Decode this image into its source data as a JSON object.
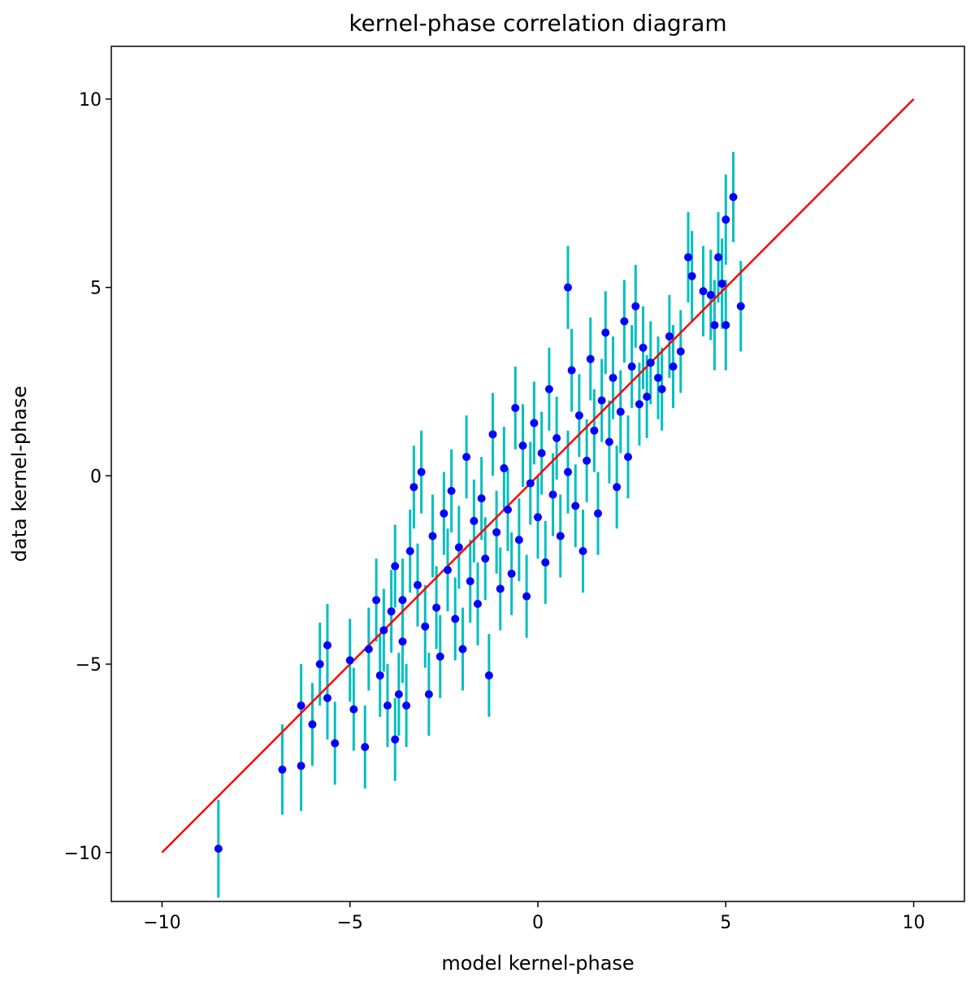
{
  "chart_data": {
    "type": "scatter",
    "title": "kernel-phase correlation diagram",
    "xlabel": "model kernel-phase",
    "ylabel": "data kernel-phase",
    "xlim": [
      -11.35,
      11.35
    ],
    "ylim": [
      -11.3,
      11.4
    ],
    "x_ticks": [
      -10,
      -5,
      0,
      5,
      10
    ],
    "y_ticks": [
      -10,
      -5,
      0,
      5,
      10
    ],
    "x_tick_labels": [
      "−10",
      "−5",
      "0",
      "5",
      "10"
    ],
    "y_tick_labels": [
      "−10",
      "−5",
      "0",
      "5",
      "10"
    ],
    "grid": false,
    "legend": "none",
    "point_color": "#0000ff",
    "errorbar_color": "#00bfbf",
    "line_color": "#ff0000",
    "reference_line": {
      "x": [
        -10,
        10
      ],
      "y": [
        -10,
        10
      ]
    },
    "series": [
      {
        "points": [
          {
            "x": -8.5,
            "y": -9.9,
            "err": 1.3
          },
          {
            "x": -6.8,
            "y": -7.8,
            "err": 1.2
          },
          {
            "x": -6.3,
            "y": -7.7,
            "err": 1.2
          },
          {
            "x": -6.3,
            "y": -6.1,
            "err": 1.1
          },
          {
            "x": -6.0,
            "y": -6.6,
            "err": 1.1
          },
          {
            "x": -5.8,
            "y": -5.0,
            "err": 1.1
          },
          {
            "x": -5.6,
            "y": -4.5,
            "err": 1.1
          },
          {
            "x": -5.6,
            "y": -5.9,
            "err": 1.1
          },
          {
            "x": -5.4,
            "y": -7.1,
            "err": 1.1
          },
          {
            "x": -5.0,
            "y": -4.9,
            "err": 1.1
          },
          {
            "x": -4.9,
            "y": -6.2,
            "err": 1.1
          },
          {
            "x": -4.6,
            "y": -7.2,
            "err": 1.1
          },
          {
            "x": -4.5,
            "y": -4.6,
            "err": 1.1
          },
          {
            "x": -4.3,
            "y": -3.3,
            "err": 1.1
          },
          {
            "x": -4.2,
            "y": -5.3,
            "err": 1.1
          },
          {
            "x": -4.1,
            "y": -4.1,
            "err": 1.1
          },
          {
            "x": -4.0,
            "y": -6.1,
            "err": 1.1
          },
          {
            "x": -3.9,
            "y": -3.6,
            "err": 1.1
          },
          {
            "x": -3.8,
            "y": -2.4,
            "err": 1.1
          },
          {
            "x": -3.8,
            "y": -7.0,
            "err": 1.1
          },
          {
            "x": -3.7,
            "y": -5.8,
            "err": 1.1
          },
          {
            "x": -3.6,
            "y": -3.3,
            "err": 1.1
          },
          {
            "x": -3.6,
            "y": -4.4,
            "err": 1.1
          },
          {
            "x": -3.5,
            "y": -6.1,
            "err": 1.1
          },
          {
            "x": -3.4,
            "y": -2.0,
            "err": 1.1
          },
          {
            "x": -3.3,
            "y": -0.3,
            "err": 1.1
          },
          {
            "x": -3.2,
            "y": -2.9,
            "err": 1.1
          },
          {
            "x": -3.1,
            "y": 0.1,
            "err": 1.1
          },
          {
            "x": -3.0,
            "y": -4.0,
            "err": 1.1
          },
          {
            "x": -2.9,
            "y": -5.8,
            "err": 1.1
          },
          {
            "x": -2.8,
            "y": -1.6,
            "err": 1.1
          },
          {
            "x": -2.7,
            "y": -3.5,
            "err": 1.1
          },
          {
            "x": -2.6,
            "y": -4.8,
            "err": 1.1
          },
          {
            "x": -2.5,
            "y": -1.0,
            "err": 1.1
          },
          {
            "x": -2.4,
            "y": -2.5,
            "err": 1.1
          },
          {
            "x": -2.3,
            "y": -0.4,
            "err": 1.1
          },
          {
            "x": -2.2,
            "y": -3.8,
            "err": 1.1
          },
          {
            "x": -2.1,
            "y": -1.9,
            "err": 1.1
          },
          {
            "x": -2.0,
            "y": -4.6,
            "err": 1.1
          },
          {
            "x": -1.9,
            "y": 0.5,
            "err": 1.1
          },
          {
            "x": -1.8,
            "y": -2.8,
            "err": 1.1
          },
          {
            "x": -1.7,
            "y": -1.2,
            "err": 1.1
          },
          {
            "x": -1.6,
            "y": -3.4,
            "err": 1.1
          },
          {
            "x": -1.5,
            "y": -0.6,
            "err": 1.1
          },
          {
            "x": -1.4,
            "y": -2.2,
            "err": 1.1
          },
          {
            "x": -1.3,
            "y": -5.3,
            "err": 1.1
          },
          {
            "x": -1.2,
            "y": 1.1,
            "err": 1.1
          },
          {
            "x": -1.1,
            "y": -1.5,
            "err": 1.1
          },
          {
            "x": -1.0,
            "y": -3.0,
            "err": 1.1
          },
          {
            "x": -0.9,
            "y": 0.2,
            "err": 1.1
          },
          {
            "x": -0.8,
            "y": -0.9,
            "err": 1.1
          },
          {
            "x": -0.7,
            "y": -2.6,
            "err": 1.1
          },
          {
            "x": -0.6,
            "y": 1.8,
            "err": 1.1
          },
          {
            "x": -0.5,
            "y": -1.7,
            "err": 1.1
          },
          {
            "x": -0.4,
            "y": 0.8,
            "err": 1.1
          },
          {
            "x": -0.3,
            "y": -3.2,
            "err": 1.1
          },
          {
            "x": -0.2,
            "y": -0.2,
            "err": 1.1
          },
          {
            "x": -0.1,
            "y": 1.4,
            "err": 1.1
          },
          {
            "x": 0.0,
            "y": -1.1,
            "err": 1.1
          },
          {
            "x": 0.1,
            "y": 0.6,
            "err": 1.1
          },
          {
            "x": 0.2,
            "y": -2.3,
            "err": 1.1
          },
          {
            "x": 0.3,
            "y": 2.3,
            "err": 1.1
          },
          {
            "x": 0.4,
            "y": -0.5,
            "err": 1.1
          },
          {
            "x": 0.5,
            "y": 1.0,
            "err": 1.1
          },
          {
            "x": 0.6,
            "y": -1.6,
            "err": 1.1
          },
          {
            "x": 0.8,
            "y": 5.0,
            "err": 1.1
          },
          {
            "x": 0.8,
            "y": 0.1,
            "err": 1.1
          },
          {
            "x": 0.9,
            "y": 2.8,
            "err": 1.1
          },
          {
            "x": 1.0,
            "y": -0.8,
            "err": 1.1
          },
          {
            "x": 1.1,
            "y": 1.6,
            "err": 1.1
          },
          {
            "x": 1.2,
            "y": -2.0,
            "err": 1.1
          },
          {
            "x": 1.3,
            "y": 0.4,
            "err": 1.1
          },
          {
            "x": 1.4,
            "y": 3.1,
            "err": 1.1
          },
          {
            "x": 1.5,
            "y": 1.2,
            "err": 1.1
          },
          {
            "x": 1.6,
            "y": -1.0,
            "err": 1.1
          },
          {
            "x": 1.7,
            "y": 2.0,
            "err": 1.1
          },
          {
            "x": 1.8,
            "y": 3.8,
            "err": 1.1
          },
          {
            "x": 1.9,
            "y": 0.9,
            "err": 1.1
          },
          {
            "x": 2.0,
            "y": 2.6,
            "err": 1.1
          },
          {
            "x": 2.1,
            "y": -0.3,
            "err": 1.1
          },
          {
            "x": 2.2,
            "y": 1.7,
            "err": 1.1
          },
          {
            "x": 2.3,
            "y": 4.1,
            "err": 1.1
          },
          {
            "x": 2.4,
            "y": 0.5,
            "err": 1.1
          },
          {
            "x": 2.5,
            "y": 2.9,
            "err": 1.1
          },
          {
            "x": 2.6,
            "y": 4.5,
            "err": 1.1
          },
          {
            "x": 2.7,
            "y": 1.9,
            "err": 1.1
          },
          {
            "x": 2.8,
            "y": 3.4,
            "err": 1.1
          },
          {
            "x": 2.9,
            "y": 2.1,
            "err": 1.1
          },
          {
            "x": 3.0,
            "y": 3.0,
            "err": 1.1
          },
          {
            "x": 3.2,
            "y": 2.6,
            "err": 1.1
          },
          {
            "x": 3.3,
            "y": 2.3,
            "err": 1.1
          },
          {
            "x": 3.5,
            "y": 3.7,
            "err": 1.1
          },
          {
            "x": 3.6,
            "y": 2.9,
            "err": 1.1
          },
          {
            "x": 3.8,
            "y": 3.3,
            "err": 1.1
          },
          {
            "x": 4.0,
            "y": 5.8,
            "err": 1.2
          },
          {
            "x": 4.1,
            "y": 5.3,
            "err": 1.2
          },
          {
            "x": 4.4,
            "y": 4.9,
            "err": 1.2
          },
          {
            "x": 4.6,
            "y": 4.8,
            "err": 1.2
          },
          {
            "x": 4.7,
            "y": 4.0,
            "err": 1.2
          },
          {
            "x": 4.8,
            "y": 5.8,
            "err": 1.2
          },
          {
            "x": 4.9,
            "y": 5.1,
            "err": 1.2
          },
          {
            "x": 5.0,
            "y": 4.0,
            "err": 1.2
          },
          {
            "x": 5.0,
            "y": 6.8,
            "err": 1.2
          },
          {
            "x": 5.2,
            "y": 7.4,
            "err": 1.2
          },
          {
            "x": 5.4,
            "y": 4.5,
            "err": 1.2
          }
        ]
      }
    ]
  }
}
